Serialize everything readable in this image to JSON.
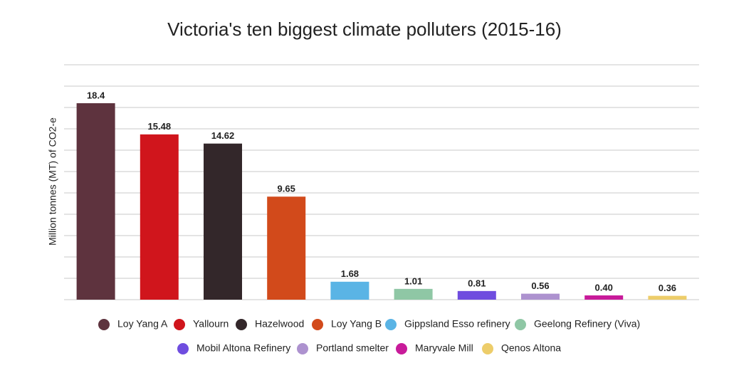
{
  "chart_data": {
    "type": "bar",
    "title": "Victoria's ten biggest climate polluters (2015-16)",
    "y_label": "Million tonnes (MT) of CO2-e",
    "categories": [
      "Loy Yang A",
      "Yallourn",
      "Hazelwood",
      "Loy Yang B",
      "Gippsland Esso refinery",
      "Geelong Refinery (Viva)",
      "Mobil Altona Refinery",
      "Portland smelter",
      "Maryvale Mill",
      "Qenos Altona"
    ],
    "values": [
      18.4,
      15.48,
      14.62,
      9.65,
      1.68,
      1.01,
      0.81,
      0.56,
      0.4,
      0.36
    ],
    "value_labels": [
      "18.4",
      "15.48",
      "14.62",
      "9.65",
      "1.68",
      "1.01",
      "0.81",
      "0.56",
      "0.40",
      "0.36"
    ],
    "colors": [
      "#5e333e",
      "#d0151c",
      "#33272a",
      "#d24a1b",
      "#5ab4e5",
      "#8fc7a5",
      "#6f4ddf",
      "#ad92cf",
      "#c81b9a",
      "#edcd6a"
    ],
    "ylim": [
      0,
      22
    ],
    "yticks": [
      0,
      2,
      4,
      6,
      8,
      10,
      12,
      14,
      16,
      18,
      20,
      22
    ],
    "grid": true
  }
}
